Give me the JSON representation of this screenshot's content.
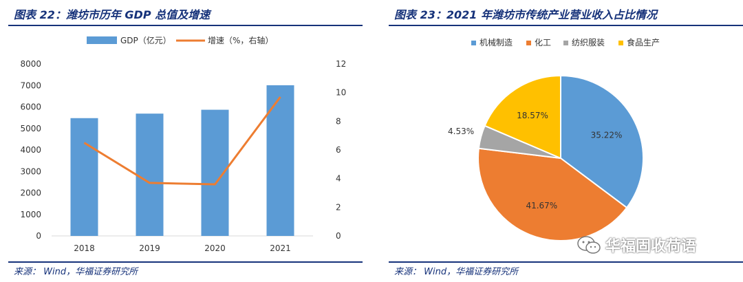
{
  "left": {
    "title": "图表 22：潍坊市历年 GDP 总值及增速",
    "source": "来源： Wind，华福证券研究所"
  },
  "right": {
    "title": "图表 23：2021 年潍坊市传统产业营业收入占比情况",
    "source": "来源： Wind，华福证券研究所"
  },
  "watermark": {
    "text": "华福固收荷语",
    "icon": "wechat-icon"
  },
  "chart_data": [
    {
      "type": "bar",
      "categories": [
        "2018",
        "2019",
        "2020",
        "2021"
      ],
      "series": [
        {
          "name": "GDP（亿元）",
          "type": "bar",
          "values": [
            5480,
            5690,
            5870,
            7010
          ],
          "color": "#5b9bd5"
        },
        {
          "name": "增速（%，右轴）",
          "type": "line",
          "axis": "right",
          "values": [
            6.5,
            3.7,
            3.6,
            9.7
          ],
          "color": "#ed7d31"
        }
      ],
      "ylim": [
        0,
        8000
      ],
      "yticks": [
        "0",
        "1000",
        "2000",
        "3000",
        "4000",
        "5000",
        "6000",
        "7000",
        "8000"
      ],
      "y2lim": [
        0,
        12
      ],
      "y2ticks": [
        "0",
        "2",
        "4",
        "6",
        "8",
        "10",
        "12"
      ],
      "legend": "top",
      "grid": false
    },
    {
      "type": "pie",
      "categories": [
        "机械制造",
        "化工",
        "纺织服装",
        "食品生产"
      ],
      "values": [
        35.22,
        41.67,
        4.53,
        18.57
      ],
      "labels": [
        "35.22%",
        "41.67%",
        "4.53%",
        "18.57%"
      ],
      "colors": [
        "#5b9bd5",
        "#ed7d31",
        "#a5a5a5",
        "#ffc000"
      ],
      "legend": "top"
    }
  ]
}
